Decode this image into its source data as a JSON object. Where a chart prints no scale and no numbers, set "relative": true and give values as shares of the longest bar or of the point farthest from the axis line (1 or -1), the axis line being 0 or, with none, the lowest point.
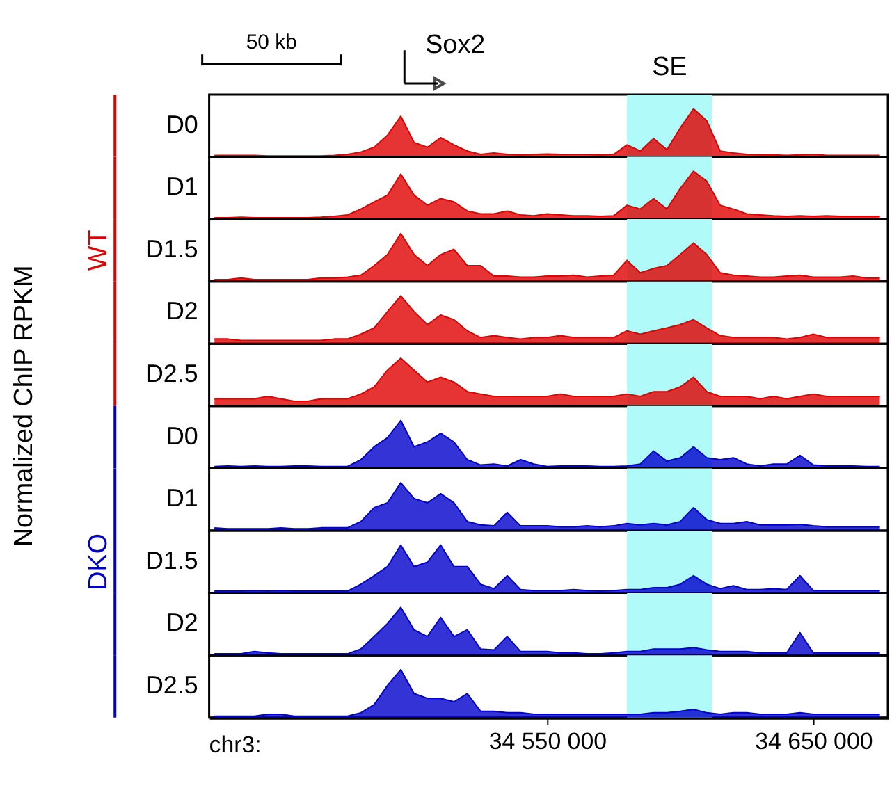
{
  "chart_data": [
    {
      "type": "area",
      "relative": true,
      "tick_labels": false,
      "xlim": [
        34423000,
        34678000
      ],
      "annotations": [
        "50 kb",
        "Sox2"
      ],
      "bands": [
        {
          "axis": "x",
          "from": 34580000,
          "to": 34612000,
          "label": "SE",
          "color": "#b0fafa"
        }
      ],
      "x": [
        34425000,
        34430000,
        34435000,
        34440000,
        34445000,
        34450000,
        34455000,
        34460000,
        34465000,
        34470000,
        34475000,
        34480000,
        34485000,
        34490000,
        34495000,
        34500000,
        34505000,
        34510000,
        34515000,
        34520000,
        34525000,
        34530000,
        34535000,
        34540000,
        34545000,
        34550000,
        34555000,
        34560000,
        34565000,
        34570000,
        34575000,
        34580000,
        34585000,
        34590000,
        34595000,
        34600000,
        34605000,
        34610000,
        34615000,
        34620000,
        34625000,
        34630000,
        34635000,
        34640000,
        34645000,
        34650000,
        34655000,
        34660000,
        34665000,
        34670000,
        34675000
      ],
      "series": [
        {
          "name": "D0",
          "color": "#e00000",
          "values": [
            0.03,
            0.03,
            0.03,
            0.03,
            0.02,
            0.02,
            0.02,
            0.02,
            0.02,
            0.03,
            0.05,
            0.1,
            0.2,
            0.45,
            0.85,
            0.3,
            0.2,
            0.4,
            0.25,
            0.12,
            0.05,
            0.08,
            0.05,
            0.04,
            0.05,
            0.06,
            0.05,
            0.05,
            0.05,
            0.04,
            0.05,
            0.25,
            0.12,
            0.38,
            0.15,
            0.6,
            1,
            0.75,
            0.12,
            0.08,
            0.05,
            0.04,
            0.04,
            0.03,
            0.04,
            0.05,
            0.03,
            0.03,
            0.03,
            0.03,
            0.03
          ]
        }
      ]
    },
    {
      "type": "area",
      "relative": true,
      "tick_labels": false,
      "xlim": [
        34423000,
        34678000
      ],
      "bands": [
        {
          "axis": "x",
          "from": 34580000,
          "to": 34612000,
          "color": "#b0fafa"
        }
      ],
      "x": [
        34425000,
        34430000,
        34435000,
        34440000,
        34445000,
        34450000,
        34455000,
        34460000,
        34465000,
        34470000,
        34475000,
        34480000,
        34485000,
        34490000,
        34495000,
        34500000,
        34505000,
        34510000,
        34515000,
        34520000,
        34525000,
        34530000,
        34535000,
        34540000,
        34545000,
        34550000,
        34555000,
        34560000,
        34565000,
        34570000,
        34575000,
        34580000,
        34585000,
        34590000,
        34595000,
        34600000,
        34605000,
        34610000,
        34615000,
        34620000,
        34625000,
        34630000,
        34635000,
        34640000,
        34645000,
        34650000,
        34655000,
        34660000,
        34665000,
        34670000,
        34675000
      ],
      "series": [
        {
          "name": "D1",
          "color": "#e00000",
          "values": [
            0.03,
            0.03,
            0.04,
            0.03,
            0.03,
            0.03,
            0.03,
            0.03,
            0.04,
            0.06,
            0.09,
            0.21,
            0.36,
            0.5,
            0.94,
            0.5,
            0.29,
            0.43,
            0.36,
            0.17,
            0.11,
            0.11,
            0.17,
            0.09,
            0.07,
            0.11,
            0.09,
            0.07,
            0.07,
            0.06,
            0.07,
            0.29,
            0.21,
            0.43,
            0.21,
            0.64,
            1,
            0.79,
            0.29,
            0.21,
            0.11,
            0.09,
            0.07,
            0.06,
            0.07,
            0.06,
            0.07,
            0.06,
            0.06,
            0.06,
            0.06
          ]
        }
      ]
    },
    {
      "type": "area",
      "relative": true,
      "tick_labels": false,
      "xlim": [
        34423000,
        34678000
      ],
      "annotations": [
        "WT"
      ],
      "bands": [
        {
          "axis": "x",
          "from": 34580000,
          "to": 34612000,
          "color": "#b0fafa"
        }
      ],
      "x": [
        34425000,
        34430000,
        34435000,
        34440000,
        34445000,
        34450000,
        34455000,
        34460000,
        34465000,
        34470000,
        34475000,
        34480000,
        34485000,
        34490000,
        34495000,
        34500000,
        34505000,
        34510000,
        34515000,
        34520000,
        34525000,
        34530000,
        34535000,
        34540000,
        34545000,
        34550000,
        34555000,
        34560000,
        34565000,
        34570000,
        34575000,
        34580000,
        34585000,
        34590000,
        34595000,
        34600000,
        34605000,
        34610000,
        34615000,
        34620000,
        34625000,
        34630000,
        34635000,
        34640000,
        34645000,
        34650000,
        34655000,
        34660000,
        34665000,
        34670000,
        34675000
      ],
      "series": [
        {
          "name": "D1.5",
          "color": "#e00000",
          "values": [
            0.04,
            0.04,
            0.07,
            0.04,
            0.04,
            0.04,
            0.04,
            0.04,
            0.07,
            0.07,
            0.09,
            0.13,
            0.33,
            0.56,
            1,
            0.56,
            0.33,
            0.56,
            0.67,
            0.33,
            0.33,
            0.11,
            0.11,
            0.09,
            0.09,
            0.11,
            0.11,
            0.13,
            0.09,
            0.11,
            0.13,
            0.44,
            0.18,
            0.27,
            0.33,
            0.56,
            0.8,
            0.56,
            0.18,
            0.13,
            0.11,
            0.09,
            0.09,
            0.11,
            0.13,
            0.09,
            0.09,
            0.09,
            0.11,
            0.07,
            0.07
          ]
        }
      ]
    },
    {
      "type": "area",
      "relative": true,
      "tick_labels": false,
      "xlim": [
        34423000,
        34678000
      ],
      "bands": [
        {
          "axis": "x",
          "from": 34580000,
          "to": 34612000,
          "color": "#b0fafa"
        }
      ],
      "x": [
        34425000,
        34430000,
        34435000,
        34440000,
        34445000,
        34450000,
        34455000,
        34460000,
        34465000,
        34470000,
        34475000,
        34480000,
        34485000,
        34490000,
        34495000,
        34500000,
        34505000,
        34510000,
        34515000,
        34520000,
        34525000,
        34530000,
        34535000,
        34540000,
        34545000,
        34550000,
        34555000,
        34560000,
        34565000,
        34570000,
        34575000,
        34580000,
        34585000,
        34590000,
        34595000,
        34600000,
        34605000,
        34610000,
        34615000,
        34620000,
        34625000,
        34630000,
        34635000,
        34640000,
        34645000,
        34650000,
        34655000,
        34660000,
        34665000,
        34670000,
        34675000
      ],
      "series": [
        {
          "name": "D2",
          "color": "#e00000",
          "values": [
            0.1,
            0.1,
            0.07,
            0.07,
            0.07,
            0.07,
            0.07,
            0.07,
            0.07,
            0.1,
            0.1,
            0.2,
            0.33,
            0.67,
            1,
            0.67,
            0.4,
            0.6,
            0.5,
            0.27,
            0.13,
            0.17,
            0.13,
            0.1,
            0.13,
            0.13,
            0.17,
            0.13,
            0.13,
            0.13,
            0.13,
            0.27,
            0.2,
            0.27,
            0.33,
            0.4,
            0.5,
            0.33,
            0.17,
            0.13,
            0.13,
            0.13,
            0.13,
            0.1,
            0.13,
            0.2,
            0.13,
            0.13,
            0.13,
            0.13,
            0.13
          ]
        }
      ]
    },
    {
      "type": "area",
      "relative": true,
      "tick_labels": false,
      "xlim": [
        34423000,
        34678000
      ],
      "annotations": [
        "Normalized ChIP RPKM"
      ],
      "bands": [
        {
          "axis": "x",
          "from": 34580000,
          "to": 34612000,
          "color": "#b0fafa"
        }
      ],
      "x": [
        34425000,
        34430000,
        34435000,
        34440000,
        34445000,
        34450000,
        34455000,
        34460000,
        34465000,
        34470000,
        34475000,
        34480000,
        34485000,
        34490000,
        34495000,
        34500000,
        34505000,
        34510000,
        34515000,
        34520000,
        34525000,
        34530000,
        34535000,
        34540000,
        34545000,
        34550000,
        34555000,
        34560000,
        34565000,
        34570000,
        34575000,
        34580000,
        34585000,
        34590000,
        34595000,
        34600000,
        34605000,
        34610000,
        34615000,
        34620000,
        34625000,
        34630000,
        34635000,
        34640000,
        34645000,
        34650000,
        34655000,
        34660000,
        34665000,
        34670000,
        34675000
      ],
      "series": [
        {
          "name": "D2.5",
          "color": "#e00000",
          "values": [
            0.15,
            0.15,
            0.15,
            0.15,
            0.2,
            0.15,
            0.1,
            0.1,
            0.15,
            0.15,
            0.15,
            0.25,
            0.4,
            0.75,
            1,
            0.75,
            0.5,
            0.6,
            0.5,
            0.3,
            0.25,
            0.2,
            0.2,
            0.2,
            0.2,
            0.2,
            0.25,
            0.2,
            0.2,
            0.2,
            0.2,
            0.25,
            0.2,
            0.3,
            0.3,
            0.4,
            0.6,
            0.3,
            0.2,
            0.2,
            0.2,
            0.15,
            0.2,
            0.15,
            0.2,
            0.25,
            0.2,
            0.2,
            0.2,
            0.2,
            0.2
          ]
        }
      ]
    },
    {
      "type": "area",
      "relative": true,
      "tick_labels": false,
      "xlim": [
        34423000,
        34678000
      ],
      "bands": [
        {
          "axis": "x",
          "from": 34580000,
          "to": 34612000,
          "color": "#b0fafa"
        }
      ],
      "x": [
        34425000,
        34430000,
        34435000,
        34440000,
        34445000,
        34450000,
        34455000,
        34460000,
        34465000,
        34470000,
        34475000,
        34480000,
        34485000,
        34490000,
        34495000,
        34500000,
        34505000,
        34510000,
        34515000,
        34520000,
        34525000,
        34530000,
        34535000,
        34540000,
        34545000,
        34550000,
        34555000,
        34560000,
        34565000,
        34570000,
        34575000,
        34580000,
        34585000,
        34590000,
        34595000,
        34600000,
        34605000,
        34610000,
        34615000,
        34620000,
        34625000,
        34630000,
        34635000,
        34640000,
        34645000,
        34650000,
        34655000,
        34660000,
        34665000,
        34670000,
        34675000
      ],
      "series": [
        {
          "name": "D0",
          "color": "#0000cc",
          "values": [
            0.04,
            0.05,
            0.04,
            0.05,
            0.04,
            0.04,
            0.05,
            0.05,
            0.04,
            0.04,
            0.04,
            0.18,
            0.45,
            0.64,
            1,
            0.45,
            0.55,
            0.73,
            0.55,
            0.18,
            0.07,
            0.09,
            0.05,
            0.18,
            0.09,
            0.04,
            0.05,
            0.05,
            0.05,
            0.04,
            0.04,
            0.05,
            0.09,
            0.36,
            0.15,
            0.22,
            0.45,
            0.22,
            0.18,
            0.22,
            0.09,
            0.05,
            0.09,
            0.09,
            0.27,
            0.07,
            0.05,
            0.05,
            0.05,
            0.04,
            0.04
          ]
        }
      ]
    },
    {
      "type": "area",
      "relative": true,
      "tick_labels": false,
      "xlim": [
        34423000,
        34678000
      ],
      "bands": [
        {
          "axis": "x",
          "from": 34580000,
          "to": 34612000,
          "color": "#b0fafa"
        }
      ],
      "x": [
        34425000,
        34430000,
        34435000,
        34440000,
        34445000,
        34450000,
        34455000,
        34460000,
        34465000,
        34470000,
        34475000,
        34480000,
        34485000,
        34490000,
        34495000,
        34500000,
        34505000,
        34510000,
        34515000,
        34520000,
        34525000,
        34530000,
        34535000,
        34540000,
        34545000,
        34550000,
        34555000,
        34560000,
        34565000,
        34570000,
        34575000,
        34580000,
        34585000,
        34590000,
        34595000,
        34600000,
        34605000,
        34610000,
        34615000,
        34620000,
        34625000,
        34630000,
        34635000,
        34640000,
        34645000,
        34650000,
        34655000,
        34660000,
        34665000,
        34670000,
        34675000
      ],
      "series": [
        {
          "name": "D1",
          "color": "#0000cc",
          "values": [
            0.06,
            0.04,
            0.04,
            0.04,
            0.04,
            0.06,
            0.04,
            0.04,
            0.06,
            0.06,
            0.06,
            0.19,
            0.48,
            0.58,
            1,
            0.67,
            0.58,
            0.77,
            0.58,
            0.19,
            0.12,
            0.1,
            0.38,
            0.1,
            0.1,
            0.1,
            0.08,
            0.08,
            0.1,
            0.08,
            0.1,
            0.15,
            0.12,
            0.15,
            0.12,
            0.19,
            0.48,
            0.23,
            0.15,
            0.15,
            0.19,
            0.12,
            0.12,
            0.12,
            0.13,
            0.1,
            0.08,
            0.08,
            0.08,
            0.08,
            0.08
          ]
        }
      ]
    },
    {
      "type": "area",
      "relative": true,
      "tick_labels": false,
      "xlim": [
        34423000,
        34678000
      ],
      "annotations": [
        "DKO"
      ],
      "bands": [
        {
          "axis": "x",
          "from": 34580000,
          "to": 34612000,
          "color": "#b0fafa"
        }
      ],
      "x": [
        34425000,
        34430000,
        34435000,
        34440000,
        34445000,
        34450000,
        34455000,
        34460000,
        34465000,
        34470000,
        34475000,
        34480000,
        34485000,
        34490000,
        34495000,
        34500000,
        34505000,
        34510000,
        34515000,
        34520000,
        34525000,
        34530000,
        34535000,
        34540000,
        34545000,
        34550000,
        34555000,
        34560000,
        34565000,
        34570000,
        34575000,
        34580000,
        34585000,
        34590000,
        34595000,
        34600000,
        34605000,
        34610000,
        34615000,
        34620000,
        34625000,
        34630000,
        34635000,
        34640000,
        34645000,
        34650000,
        34655000,
        34660000,
        34665000,
        34670000,
        34675000
      ],
      "series": [
        {
          "name": "D1.5",
          "color": "#0000cc",
          "values": [
            0.04,
            0.04,
            0.04,
            0.05,
            0.04,
            0.05,
            0.04,
            0.04,
            0.04,
            0.04,
            0.04,
            0.18,
            0.36,
            0.55,
            1,
            0.55,
            0.64,
            1,
            0.55,
            0.55,
            0.18,
            0.09,
            0.36,
            0.07,
            0.05,
            0.05,
            0.05,
            0.07,
            0.05,
            0.04,
            0.05,
            0.07,
            0.07,
            0.11,
            0.11,
            0.18,
            0.36,
            0.18,
            0.09,
            0.15,
            0.07,
            0.07,
            0.09,
            0.07,
            0.36,
            0.05,
            0.05,
            0.05,
            0.05,
            0.05,
            0.05
          ]
        }
      ]
    },
    {
      "type": "area",
      "relative": true,
      "tick_labels": false,
      "xlim": [
        34423000,
        34678000
      ],
      "bands": [
        {
          "axis": "x",
          "from": 34580000,
          "to": 34612000,
          "color": "#b0fafa"
        }
      ],
      "x": [
        34425000,
        34430000,
        34435000,
        34440000,
        34445000,
        34450000,
        34455000,
        34460000,
        34465000,
        34470000,
        34475000,
        34480000,
        34485000,
        34490000,
        34495000,
        34500000,
        34505000,
        34510000,
        34515000,
        34520000,
        34525000,
        34530000,
        34535000,
        34540000,
        34545000,
        34550000,
        34555000,
        34560000,
        34565000,
        34570000,
        34575000,
        34580000,
        34585000,
        34590000,
        34595000,
        34600000,
        34605000,
        34610000,
        34615000,
        34620000,
        34625000,
        34630000,
        34635000,
        34640000,
        34645000,
        34650000,
        34655000,
        34660000,
        34665000,
        34670000,
        34675000
      ],
      "series": [
        {
          "name": "D2",
          "color": "#0000cc",
          "values": [
            0.03,
            0.03,
            0.03,
            0.08,
            0.05,
            0.03,
            0.03,
            0.03,
            0.03,
            0.03,
            0.03,
            0.13,
            0.39,
            0.66,
            1,
            0.53,
            0.39,
            0.79,
            0.39,
            0.53,
            0.13,
            0.11,
            0.39,
            0.08,
            0.08,
            0.08,
            0.05,
            0.05,
            0.03,
            0.03,
            0.05,
            0.08,
            0.08,
            0.13,
            0.13,
            0.13,
            0.16,
            0.11,
            0.08,
            0.08,
            0.08,
            0.05,
            0.05,
            0.05,
            0.47,
            0.05,
            0.05,
            0.05,
            0.05,
            0.05,
            0.05
          ]
        }
      ]
    },
    {
      "type": "area",
      "relative": true,
      "tick_labels": "x",
      "xlim": [
        34423000,
        34678000
      ],
      "annotations": [
        "chr3:"
      ],
      "xticks": [
        {
          "value": 34550000,
          "label": "34 550 000"
        },
        {
          "value": 34650000,
          "label": "34 650 000"
        }
      ],
      "bands": [
        {
          "axis": "x",
          "from": 34580000,
          "to": 34612000,
          "color": "#b0fafa"
        }
      ],
      "x": [
        34425000,
        34430000,
        34435000,
        34440000,
        34445000,
        34450000,
        34455000,
        34460000,
        34465000,
        34470000,
        34475000,
        34480000,
        34485000,
        34490000,
        34495000,
        34500000,
        34505000,
        34510000,
        34515000,
        34520000,
        34525000,
        34530000,
        34535000,
        34540000,
        34545000,
        34550000,
        34555000,
        34560000,
        34565000,
        34570000,
        34575000,
        34580000,
        34585000,
        34590000,
        34595000,
        34600000,
        34605000,
        34610000,
        34615000,
        34620000,
        34625000,
        34630000,
        34635000,
        34640000,
        34645000,
        34650000,
        34655000,
        34660000,
        34665000,
        34670000,
        34675000
      ],
      "series": [
        {
          "name": "D2.5",
          "color": "#0000cc",
          "values": [
            0.03,
            0.03,
            0.03,
            0.03,
            0.07,
            0.07,
            0.03,
            0.03,
            0.03,
            0.03,
            0.03,
            0.1,
            0.27,
            0.67,
            1,
            0.5,
            0.4,
            0.4,
            0.33,
            0.5,
            0.13,
            0.13,
            0.1,
            0.1,
            0.07,
            0.07,
            0.07,
            0.07,
            0.07,
            0.07,
            0.07,
            0.07,
            0.07,
            0.1,
            0.1,
            0.13,
            0.17,
            0.1,
            0.07,
            0.1,
            0.1,
            0.07,
            0.07,
            0.07,
            0.1,
            0.07,
            0.07,
            0.07,
            0.07,
            0.07,
            0.07
          ]
        }
      ]
    }
  ]
}
